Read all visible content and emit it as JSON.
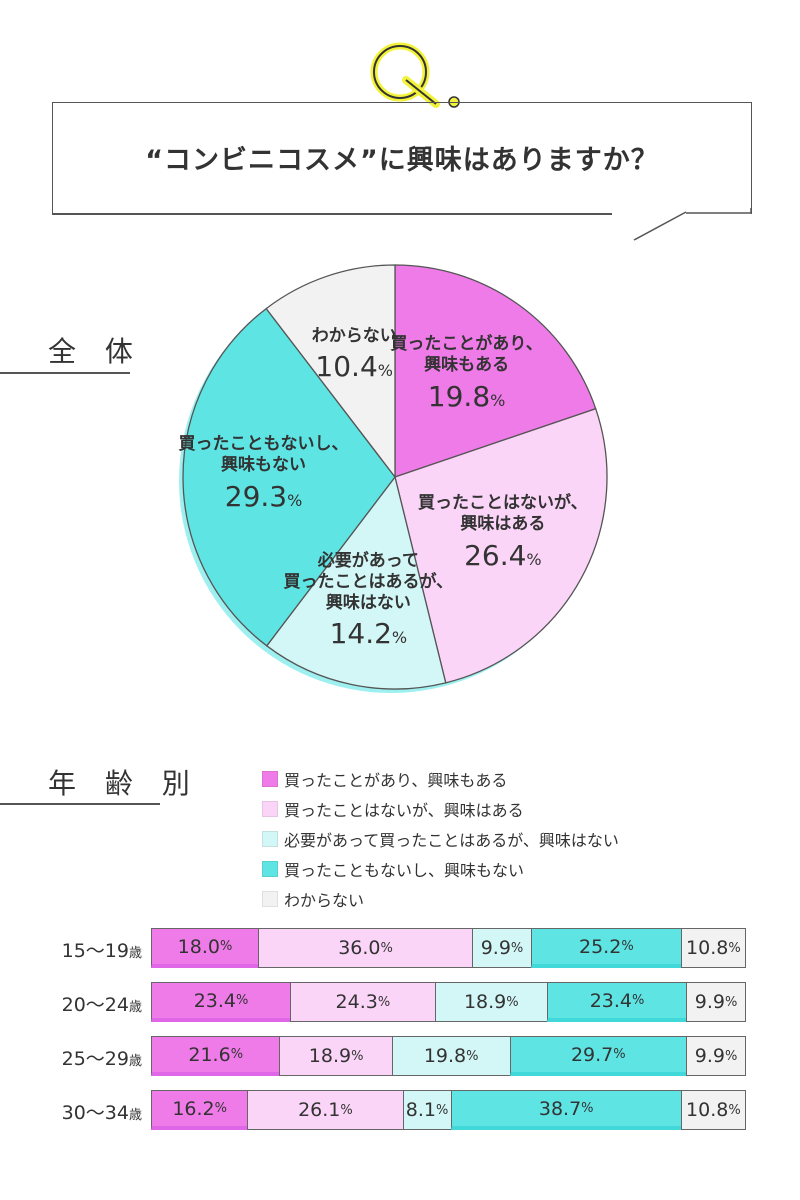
{
  "question_badge": "Q.",
  "question": "“コンビニコスメ”に興味はありますか？",
  "sections": {
    "overall": "全 体",
    "by_age": "年 齢 別"
  },
  "colors": {
    "bought_interested": "#ef7be8",
    "not_bought_interested": "#fbd5f8",
    "bought_needed_not_interested": "#d3f6f6",
    "not_bought_not_interested": "#5fe4e4",
    "unknown": "#f2f2f2",
    "accent_yellow": "#f2f23a"
  },
  "legend": [
    "買ったことがあり、興味もある",
    "買ったことはないが、興味はある",
    "必要があって買ったことはあるが、興味はない",
    "買ったこともないし、興味もない",
    "わからない"
  ],
  "chart_data": [
    {
      "type": "pie",
      "title": "全 体",
      "slices": [
        {
          "label": "買ったことがあり、興味もある",
          "value": 19.8
        },
        {
          "label": "買ったことはないが、興味はある",
          "value": 26.4
        },
        {
          "label": "必要があって買ったことはあるが、興味はない",
          "value": 14.2
        },
        {
          "label": "買ったこともないし、興味もない",
          "value": 29.3
        },
        {
          "label": "わからない",
          "value": 10.4
        }
      ],
      "display_labels": [
        {
          "lines": [
            "買ったことがあり、",
            "興味もある"
          ],
          "value": "19.8"
        },
        {
          "lines": [
            "買ったことはないが、",
            "興味はある"
          ],
          "value": "26.4"
        },
        {
          "lines": [
            "必要があって",
            "買ったことはあるが、",
            "興味はない"
          ],
          "value": "14.2"
        },
        {
          "lines": [
            "買ったこともないし、",
            "興味もない"
          ],
          "value": "29.3"
        },
        {
          "lines": [
            "わからない"
          ],
          "value": "10.4"
        }
      ],
      "unit": "%"
    },
    {
      "type": "bar",
      "orientation": "horizontal",
      "stacked": true,
      "title": "年 齢 別",
      "categories": [
        "15〜19",
        "20〜24",
        "25〜29",
        "30〜34"
      ],
      "category_suffix": "歳",
      "series": [
        {
          "name": "買ったことがあり、興味もある",
          "values": [
            18.0,
            23.4,
            21.6,
            16.2
          ]
        },
        {
          "name": "買ったことはないが、興味はある",
          "values": [
            36.0,
            24.3,
            18.9,
            26.1
          ]
        },
        {
          "name": "必要があって買ったことはあるが、興味はない",
          "values": [
            9.9,
            18.9,
            19.8,
            8.1
          ]
        },
        {
          "name": "買ったこともないし、興味もない",
          "values": [
            25.2,
            23.4,
            29.7,
            38.7
          ]
        },
        {
          "name": "わからない",
          "values": [
            10.8,
            9.9,
            9.9,
            10.8
          ]
        }
      ],
      "unit": "%"
    }
  ]
}
